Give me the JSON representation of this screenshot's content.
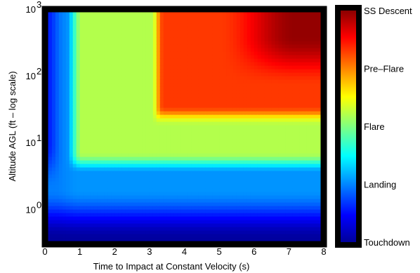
{
  "chart_data": {
    "type": "heatmap",
    "title": "",
    "xlabel": "Time to Impact at Constant Velocity (s)",
    "ylabel": "Altitude AGL (ft – log scale)",
    "xlim": [
      0,
      8
    ],
    "ylim": [
      0.3,
      1000
    ],
    "y_scale": "log",
    "x_ticks": [
      "0",
      "1",
      "2",
      "3",
      "4",
      "5",
      "6",
      "7",
      "8"
    ],
    "y_ticks": [
      {
        "value": 1,
        "base": "10",
        "exp": "0"
      },
      {
        "value": 10,
        "base": "10",
        "exp": "1"
      },
      {
        "value": 100,
        "base": "10",
        "exp": "2"
      },
      {
        "value": 1000,
        "base": "10",
        "exp": "3"
      }
    ],
    "colorbar": {
      "colormap": "jet",
      "labels": [
        "SS Descent",
        "Pre–Flare",
        "Flare",
        "Landing",
        "Touchdown"
      ]
    },
    "regions": [
      {
        "name": "Touchdown",
        "level": 0.0
      },
      {
        "name": "Landing",
        "level": 0.28
      },
      {
        "name": "Flare",
        "level": 0.55
      },
      {
        "name": "Pre-Flare",
        "level": 0.82
      },
      {
        "name": "SS Descent",
        "level": 1.0
      }
    ],
    "colors": {
      "touchdown": "#00008f",
      "landing": "#00a0ff",
      "flare": "#80ff80",
      "pre_flare": "#ff8c00",
      "ss_descent": "#800000",
      "frame": "#000000"
    }
  }
}
